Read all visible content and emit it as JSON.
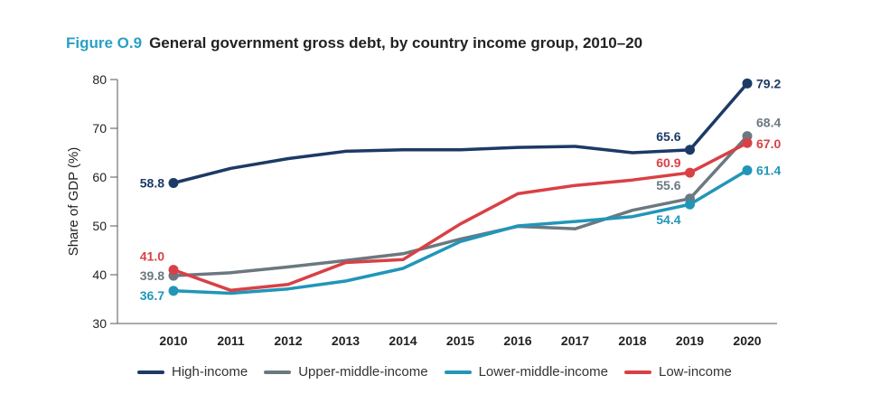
{
  "title": {
    "figure": "Figure O.9",
    "text": "General government gross debt, by country income group, 2010–20"
  },
  "chart_data": {
    "type": "line",
    "title": "General government gross debt, by country income group, 2010–20",
    "ylabel": "Share of GDP (%)",
    "xlabel": "",
    "ylim": [
      30,
      80
    ],
    "yticks": [
      "30",
      "40",
      "50",
      "60",
      "70",
      "80"
    ],
    "categories": [
      "2010",
      "2011",
      "2012",
      "2013",
      "2014",
      "2015",
      "2016",
      "2017",
      "2018",
      "2019",
      "2020"
    ],
    "series": [
      {
        "name": "High-income",
        "color": "#1c3a66",
        "values": [
          58.8,
          61.8,
          63.8,
          65.3,
          65.6,
          65.6,
          66.1,
          66.3,
          65.0,
          65.6,
          79.2
        ],
        "labels": [
          {
            "index": 0,
            "text": "58.8",
            "anchor": "end",
            "dx": -10,
            "dy": 5
          },
          {
            "index": 9,
            "text": "65.6",
            "anchor": "end",
            "dx": -10,
            "dy": -10
          },
          {
            "index": 10,
            "text": "79.2",
            "anchor": "start",
            "dx": 10,
            "dy": 5
          }
        ]
      },
      {
        "name": "Upper-middle-income",
        "color": "#6b7880",
        "values": [
          39.8,
          40.4,
          41.6,
          42.9,
          44.3,
          47.3,
          49.9,
          49.4,
          53.2,
          55.6,
          68.4
        ],
        "labels": [
          {
            "index": 0,
            "text": "39.8",
            "anchor": "end",
            "dx": -10,
            "dy": 5
          },
          {
            "index": 9,
            "text": "55.6",
            "anchor": "end",
            "dx": -10,
            "dy": -10
          },
          {
            "index": 10,
            "text": "68.4",
            "anchor": "start",
            "dx": 10,
            "dy": -10
          }
        ]
      },
      {
        "name": "Lower-middle-income",
        "color": "#2196b8",
        "values": [
          36.7,
          36.2,
          37.1,
          38.7,
          41.3,
          46.8,
          50.0,
          50.9,
          51.9,
          54.4,
          61.4
        ],
        "labels": [
          {
            "index": 0,
            "text": "36.7",
            "anchor": "end",
            "dx": -10,
            "dy": 10
          },
          {
            "index": 9,
            "text": "54.4",
            "anchor": "end",
            "dx": -10,
            "dy": 22
          },
          {
            "index": 10,
            "text": "61.4",
            "anchor": "start",
            "dx": 10,
            "dy": 5
          }
        ]
      },
      {
        "name": "Low-income",
        "color": "#d94045",
        "values": [
          41.0,
          36.8,
          38.0,
          42.5,
          43.1,
          50.4,
          56.6,
          58.3,
          59.4,
          60.9,
          67.0
        ],
        "labels": [
          {
            "index": 0,
            "text": "41.0",
            "anchor": "end",
            "dx": -10,
            "dy": -10
          },
          {
            "index": 9,
            "text": "60.9",
            "anchor": "end",
            "dx": -10,
            "dy": -6
          },
          {
            "index": 10,
            "text": "67.0",
            "anchor": "start",
            "dx": 10,
            "dy": 6
          }
        ]
      }
    ]
  }
}
